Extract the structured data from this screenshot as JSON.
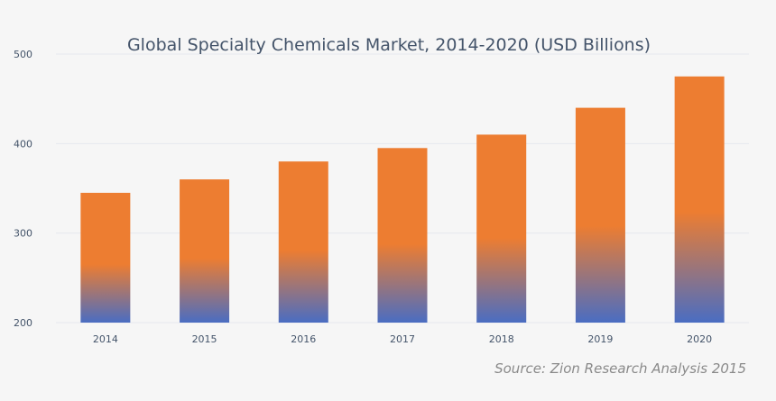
{
  "chart_data": {
    "type": "bar",
    "title": "Global Specialty Chemicals Market, 2014-2020 (USD Billions)",
    "categories": [
      "2014",
      "2015",
      "2016",
      "2017",
      "2018",
      "2019",
      "2020"
    ],
    "values": [
      345,
      360,
      380,
      395,
      410,
      440,
      475
    ],
    "xlabel": "",
    "ylabel": "",
    "ylim": [
      200,
      500
    ],
    "yticks": [
      200,
      300,
      400,
      500
    ],
    "grid": true,
    "legend": "none",
    "colors": {
      "top": "#ED7D31",
      "bottom": "#4A6DC2",
      "grid": "#e6e8ee",
      "text": "#44546a"
    },
    "annotation": "Source: Zion Research Analysis 2015"
  }
}
